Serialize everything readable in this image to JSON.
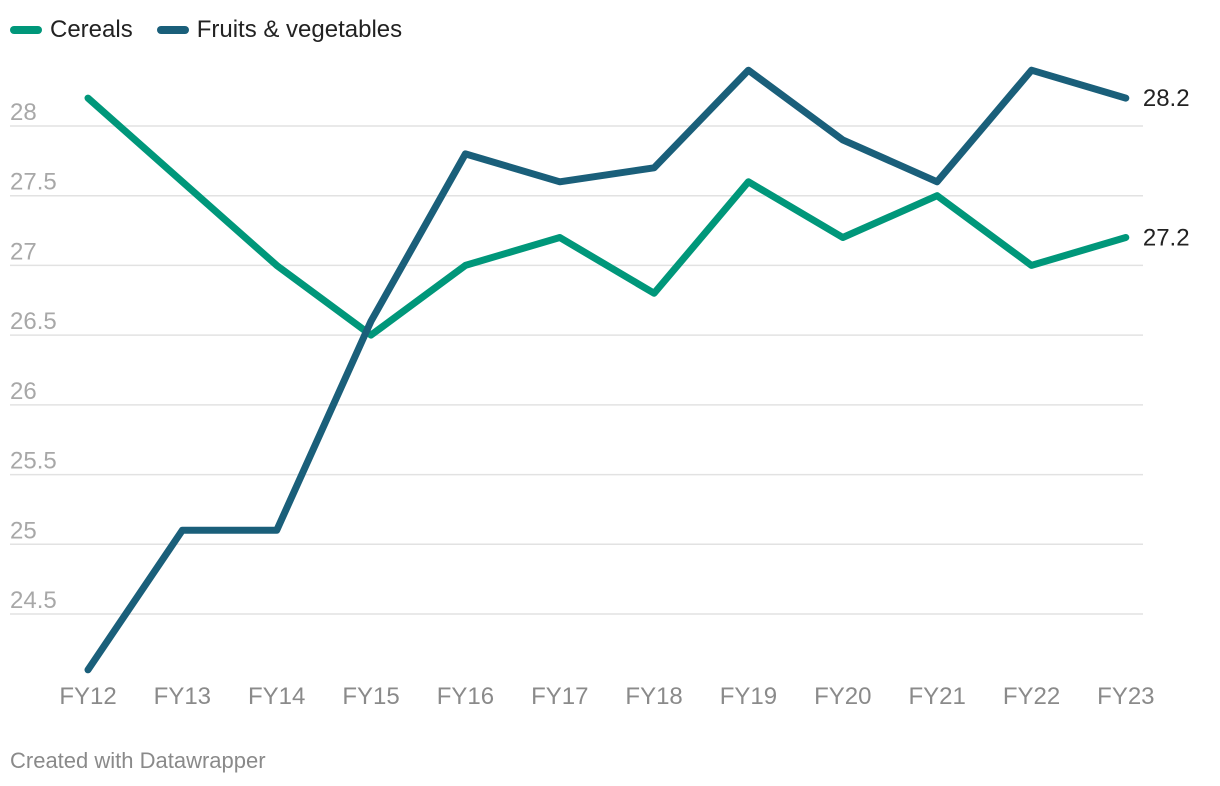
{
  "chart_data": {
    "type": "line",
    "categories": [
      "FY12",
      "FY13",
      "FY14",
      "FY15",
      "FY16",
      "FY17",
      "FY18",
      "FY19",
      "FY20",
      "FY21",
      "FY22",
      "FY23"
    ],
    "series": [
      {
        "name": "Cereals",
        "color": "#00977a",
        "values": [
          28.2,
          27.6,
          27.0,
          26.5,
          27.0,
          27.2,
          26.8,
          27.6,
          27.2,
          27.5,
          27.0,
          27.2
        ],
        "end_label": "27.2"
      },
      {
        "name": "Fruits & vegetables",
        "color": "#1a5f7a",
        "values": [
          24.1,
          25.1,
          25.1,
          26.6,
          27.8,
          27.6,
          27.7,
          28.4,
          27.9,
          27.6,
          28.4,
          28.2
        ],
        "end_label": "28.2"
      }
    ],
    "y_ticks": [
      24.5,
      25,
      25.5,
      26,
      26.5,
      27,
      27.5,
      28
    ],
    "y_tick_labels": [
      "24.5",
      "25",
      "25.5",
      "26",
      "26.5",
      "27",
      "27.5",
      "28"
    ],
    "ylim": [
      24.1,
      28.4
    ],
    "grid": true,
    "legend": "top-left",
    "title": "",
    "xlabel": "",
    "ylabel": ""
  },
  "footer": {
    "credit": "Created with Datawrapper"
  }
}
